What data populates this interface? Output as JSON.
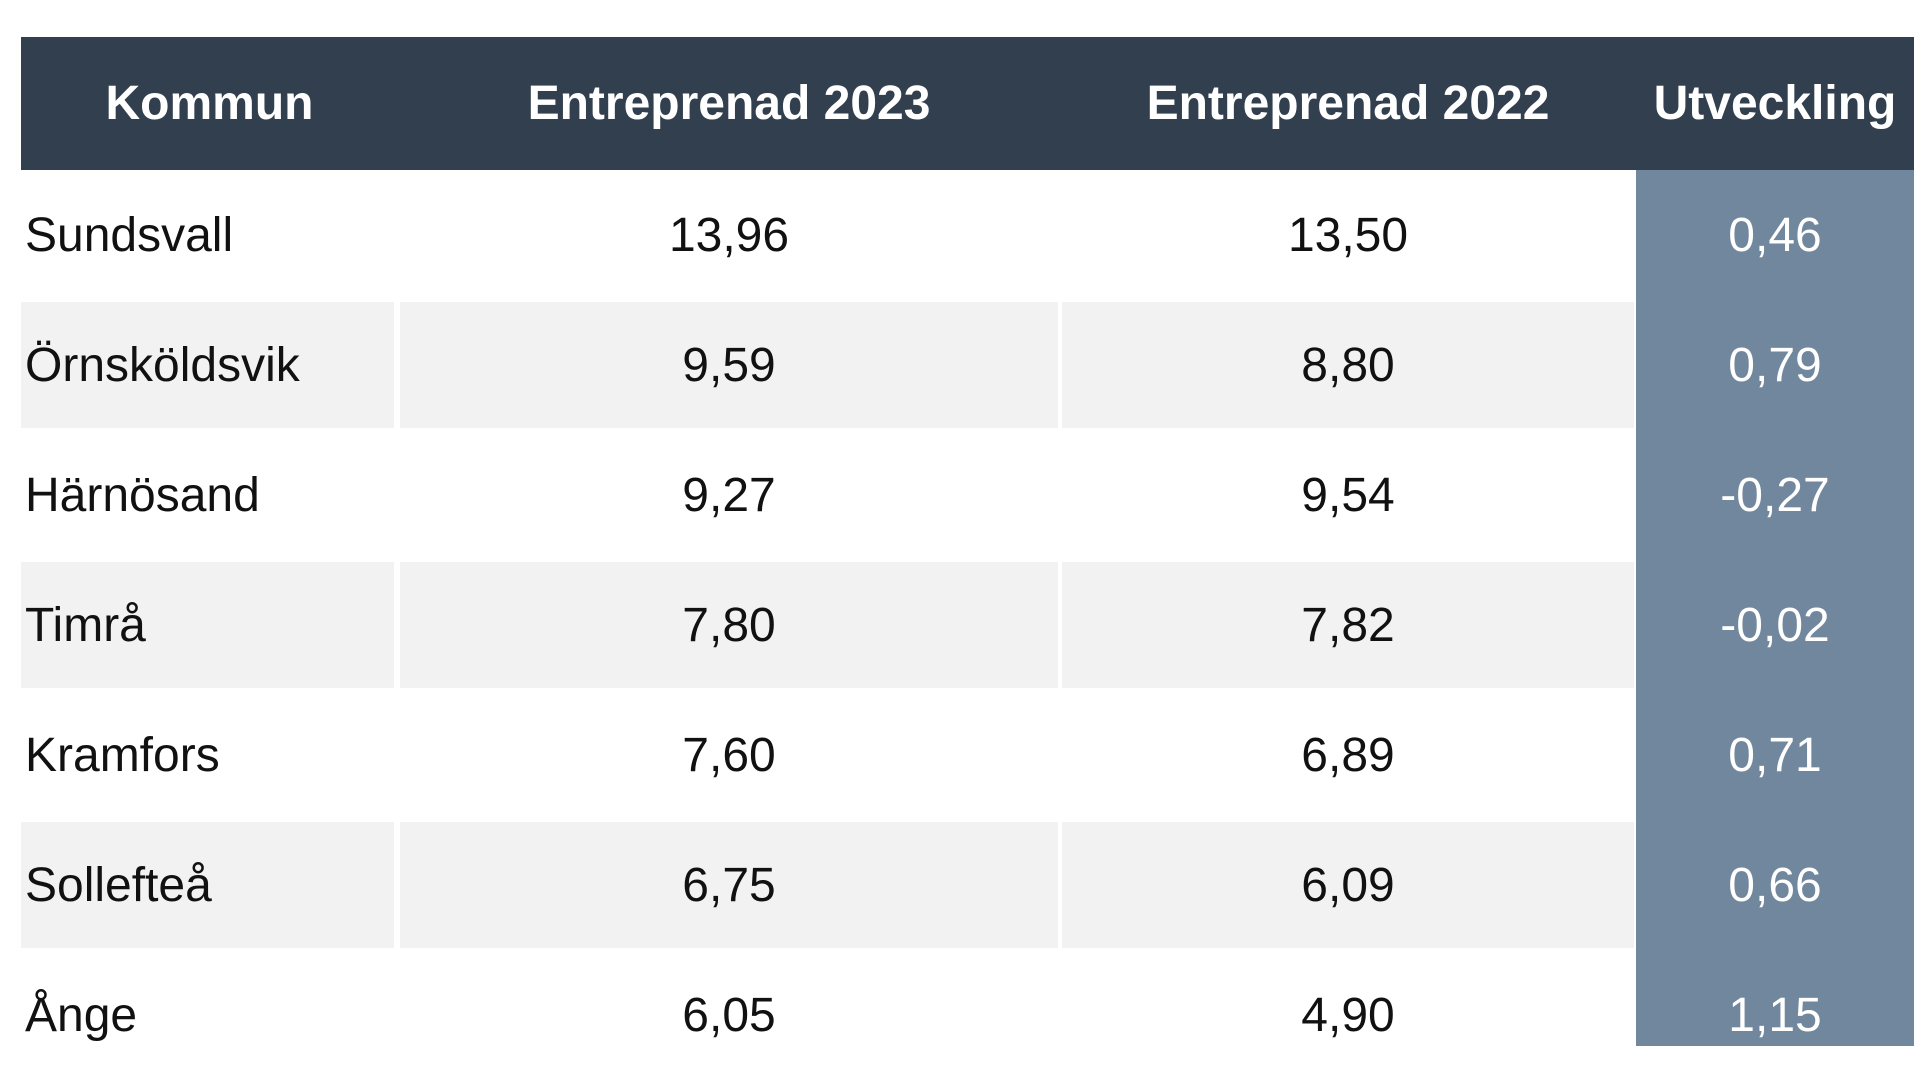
{
  "table": {
    "header": [
      "Kommun",
      "Entreprenad 2023",
      "Entreprenad 2022",
      "Utveckling"
    ],
    "rows": [
      [
        "Sundsvall",
        "13,96",
        "13,50",
        "0,46"
      ],
      [
        "Örnsköldsvik",
        "9,59",
        "8,80",
        "0,79"
      ],
      [
        "Härnösand",
        "9,27",
        "9,54",
        "-0,27"
      ],
      [
        "Timrå",
        "7,80",
        "7,82",
        "-0,02"
      ],
      [
        "Kramfors",
        "7,60",
        "6,89",
        "0,71"
      ],
      [
        "Sollefteå",
        "6,75",
        "6,09",
        "0,66"
      ],
      [
        "Ånge",
        "6,05",
        "4,90",
        "1,15"
      ]
    ]
  }
}
